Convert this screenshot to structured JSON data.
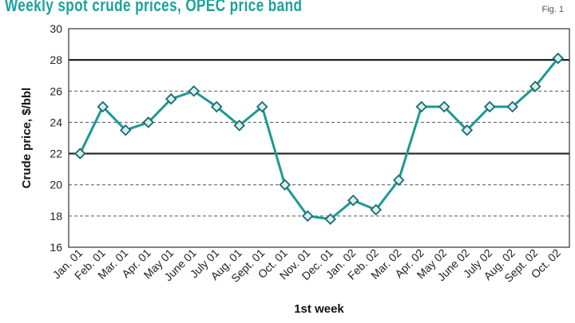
{
  "header": {
    "title": "Weekly spot crude prices, OPEC price band",
    "fig_label": "Fig. 1"
  },
  "colors": {
    "line": "#1a9a93",
    "marker_fill": "#d8eeee",
    "marker_stroke": "#1a6a70",
    "grid": "#555555",
    "band": "#222222",
    "title": "#1aa39a"
  },
  "chart_data": {
    "type": "line",
    "title": "Weekly spot crude prices, OPEC price band",
    "xlabel": "1st week",
    "ylabel": "Crude price, $/bbl",
    "ylim": [
      16,
      30
    ],
    "yticks": [
      16,
      18,
      20,
      22,
      24,
      26,
      28,
      30
    ],
    "grid": "dashed horizontal",
    "price_band": [
      22,
      28
    ],
    "categories": [
      "Jan. 01",
      "Feb. 01",
      "Mar. 01",
      "Apr. 01",
      "May 01",
      "June 01",
      "July 01",
      "Aug. 01",
      "Sept. 01",
      "Oct. 01",
      "Nov. 01",
      "Dec. 01",
      "Jan. 02",
      "Feb. 02",
      "Mar. 02",
      "Apr. 02",
      "May 02",
      "June 02",
      "July 02",
      "Aug. 02",
      "Sept. 02",
      "Oct. 02"
    ],
    "values": [
      22.0,
      25.0,
      23.5,
      24.0,
      25.5,
      26.0,
      25.0,
      23.8,
      25.0,
      20.0,
      18.0,
      17.8,
      19.0,
      18.4,
      20.3,
      25.0,
      25.0,
      23.5,
      25.0,
      25.0,
      26.3,
      28.1
    ]
  }
}
